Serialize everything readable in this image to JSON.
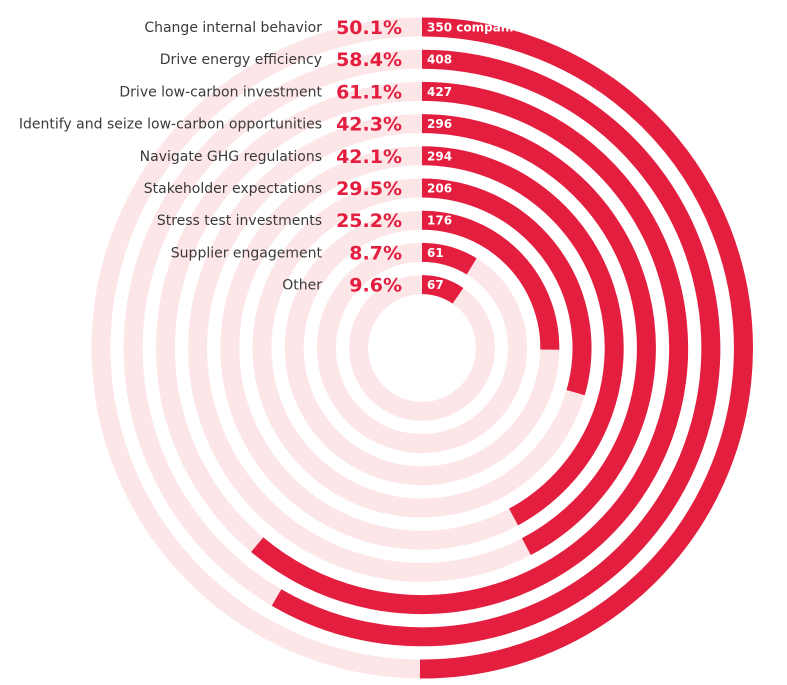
{
  "chart_data": {
    "type": "radial-bar",
    "unit_suffix": "%",
    "first_count_suffix": " companies",
    "colors": {
      "bar": "#e41e3f",
      "track": "#fde6e8",
      "count_text": "#ffffff",
      "label_text": "#3a3a3a"
    },
    "categories": [
      "Change internal behavior",
      "Drive energy efficiency",
      "Drive low-carbon investment",
      "Identify and seize low-carbon opportunities",
      "Navigate GHG regulations",
      "Stakeholder expectations",
      "Stress test investments",
      "Supplier engagement",
      "Other"
    ],
    "values": [
      50.1,
      58.4,
      61.1,
      42.3,
      42.1,
      29.5,
      25.2,
      8.7,
      9.6
    ],
    "counts": [
      350,
      408,
      427,
      296,
      294,
      206,
      176,
      61,
      67
    ],
    "vmax": 100
  }
}
